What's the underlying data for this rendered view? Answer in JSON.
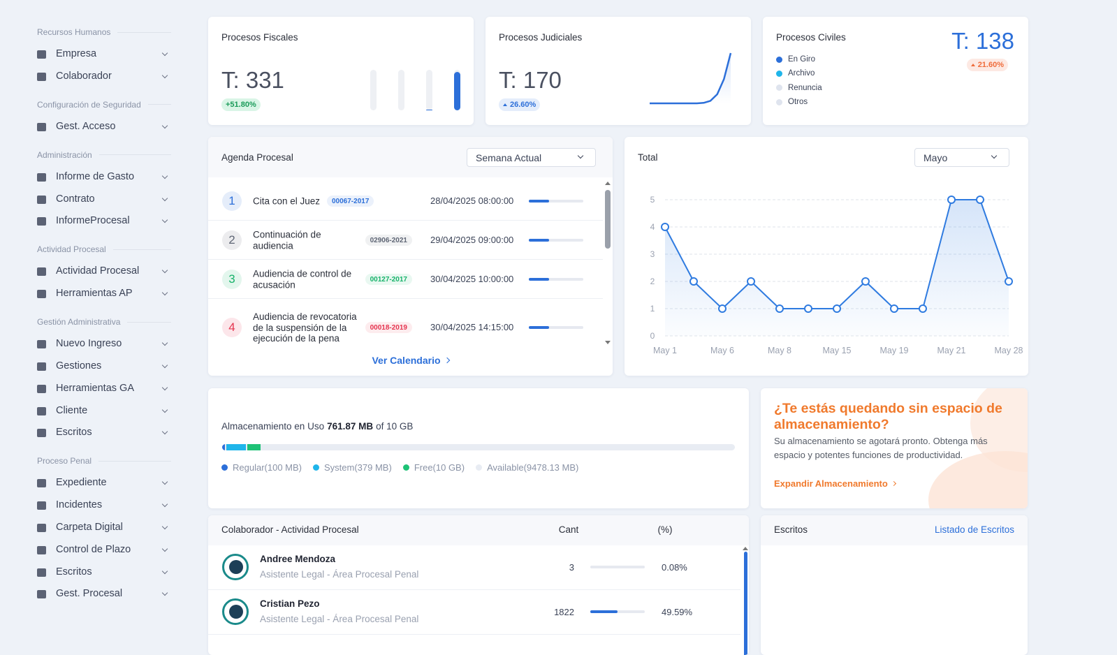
{
  "sidebar": {
    "sections": [
      {
        "title": "Recursos Humanos",
        "items": [
          "Empresa",
          "Colaborador"
        ]
      },
      {
        "title": "Configuración de Seguridad",
        "items": [
          "Gest. Acceso"
        ]
      },
      {
        "title": "Administración",
        "items": [
          "Informe de Gasto",
          "Contrato",
          "InformeProcesal"
        ]
      },
      {
        "title": "Actividad Procesal",
        "items": [
          "Actividad Procesal",
          "Herramientas AP"
        ]
      },
      {
        "title": "Gestión Administrativa",
        "items": [
          "Nuevo Ingreso",
          "Gestiones",
          "Herramientas GA",
          "Cliente",
          "Escritos"
        ]
      },
      {
        "title": "Proceso Penal",
        "items": [
          "Expediente",
          "Incidentes",
          "Carpeta Digital",
          "Control de Plazo",
          "Escritos",
          "Gest. Procesal"
        ]
      }
    ]
  },
  "cards": {
    "fiscal": {
      "title": "Procesos Fiscales",
      "total": "T: 331",
      "change": "+51.80%",
      "bars": [
        0,
        0,
        2,
        95
      ],
      "color": "#2c6fd9"
    },
    "judicial": {
      "title": "Procesos Judiciales",
      "total": "T: 170",
      "change": "26.60%",
      "trend": [
        0,
        0,
        0,
        0,
        0,
        0,
        0,
        0,
        1,
        5,
        18,
        48,
        100
      ],
      "color": "#2c6fd9"
    },
    "civil": {
      "title": "Procesos Civiles",
      "total": "T: 138",
      "change": "21.60%",
      "legend": [
        {
          "name": "En Giro",
          "color": "#2c6fd9"
        },
        {
          "name": "Archivo",
          "color": "#1fb5ea"
        },
        {
          "name": "Renuncia",
          "color": "#dfe4ee"
        },
        {
          "name": "Otros",
          "color": "#dfe4ee"
        }
      ]
    }
  },
  "agenda": {
    "title": "Agenda Procesal",
    "filter": "Semana Actual",
    "link": "Ver Calendario",
    "items": [
      {
        "number": "1",
        "title": "Cita con el Juez",
        "code": "00067-2017",
        "date": "28/04/2025 08:00:00",
        "progress": 37,
        "color": "#2c6fd9"
      },
      {
        "number": "2",
        "title": "Continuación de audiencia",
        "code": "02906-2021",
        "date": "29/04/2025 09:00:00",
        "progress": 37,
        "color": "#5f6675"
      },
      {
        "number": "3",
        "title": "Audiencia de control de acusación",
        "code": "00127-2017",
        "date": "30/04/2025 10:00:00",
        "progress": 37,
        "color": "#17b26a"
      },
      {
        "number": "4",
        "title": "Audiencia de revocatoria de la suspensión de la ejecución de la pena",
        "code": "00018-2019",
        "date": "30/04/2025 14:15:00",
        "progress": 37,
        "color": "#e5344f"
      }
    ]
  },
  "chart_data": {
    "type": "line",
    "title": "Total",
    "filter": "Mayo",
    "categories": [
      "May 1",
      null,
      "May 6",
      null,
      "May 8",
      null,
      "May 15",
      null,
      "May 19",
      null,
      "May 21",
      null,
      "May 28"
    ],
    "values": [
      4,
      2,
      1,
      2,
      1,
      1,
      1,
      2,
      1,
      1,
      5,
      5,
      2
    ],
    "color": "#2f7be0",
    "ylim": [
      0,
      5
    ],
    "yticks": [
      0,
      1,
      2,
      3,
      4,
      5
    ],
    "grid": true
  },
  "storage": {
    "label": "Almacenamiento en Uso",
    "used": "761.87 MB",
    "total": "of 10 GB",
    "segments": [
      {
        "name": "Regular(100 MB)",
        "color": "#2c6fd9",
        "value": 0.6
      },
      {
        "name": "System(379 MB)",
        "color": "#1fb5ea",
        "value": 3.8
      },
      {
        "name": "Free(10 GB)",
        "color": "#1ec276",
        "value": 2.5
      },
      {
        "name": "Available(9478.13 MB)",
        "color": "#e8ecf3"
      }
    ]
  },
  "promo": {
    "title": "¿Te estás quedando sin espacio de almacenamiento?",
    "text": "Su almacenamiento se agotará pronto. Obtenga más espacio y potentes funciones de productividad.",
    "link": "Expandir Almacenamiento"
  },
  "activity": {
    "title": "Colaborador - Actividad Procesal",
    "columns": [
      "Cant",
      "(%)"
    ],
    "rows": [
      {
        "name": "Andree Mendoza",
        "role": "Asistente Legal - Área Procesal Penal",
        "count": 3,
        "percent": 0.08,
        "percent_label": "0.08%"
      },
      {
        "name": "Cristian Pezo",
        "role": "Asistente Legal - Área Procesal Penal",
        "count": 1822,
        "percent": 49.59,
        "percent_label": "49.59%"
      }
    ]
  },
  "writings": {
    "title": "Escritos",
    "link": "Listado de Escritos"
  }
}
